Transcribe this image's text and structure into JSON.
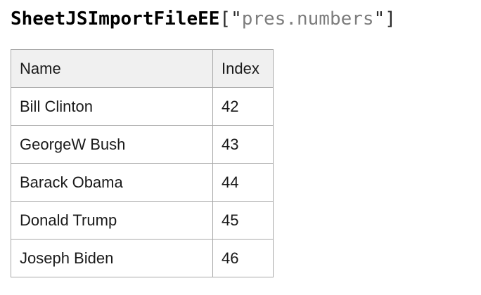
{
  "title": {
    "identifier": "SheetJSImportFileEE",
    "open_punct": "[\"",
    "string": "pres.numbers",
    "close_punct": "\"]"
  },
  "table": {
    "columns": [
      "Name",
      "Index"
    ],
    "rows": [
      {
        "name": "Bill Clinton",
        "index": "42"
      },
      {
        "name": "GeorgeW Bush",
        "index": "43"
      },
      {
        "name": "Barack Obama",
        "index": "44"
      },
      {
        "name": "Donald Trump",
        "index": "45"
      },
      {
        "name": "Joseph Biden",
        "index": "46"
      }
    ]
  },
  "colors": {
    "background": "#ffffff",
    "title_identifier": "#000000",
    "title_punctuation": "#2b2b2b",
    "title_string": "#7d7d7d",
    "table_border": "#a9a9a9",
    "header_background": "#f0f0f0",
    "cell_text": "#1a1a1a"
  }
}
